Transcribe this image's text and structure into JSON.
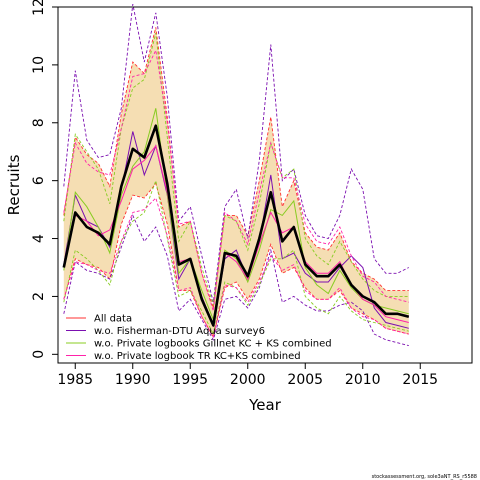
{
  "chart_data": {
    "type": "line",
    "xlabel": "Year",
    "ylabel": "Recruits",
    "xlim": [
      1983.5,
      2019.5
    ],
    "ylim": [
      -0.3,
      12
    ],
    "xticks": [
      1985,
      1990,
      1995,
      2000,
      2005,
      2010,
      2015
    ],
    "yticks": [
      0,
      2,
      4,
      6,
      8,
      10,
      12
    ],
    "tick_labels_x": [
      "1985",
      "1990",
      "1995",
      "2000",
      "2005",
      "2010",
      "2015"
    ],
    "tick_labels_y": [
      "0",
      "2",
      "4",
      "6",
      "8",
      "10",
      "12"
    ],
    "legend_position": "bottom-left",
    "grid": false,
    "x": [
      1984,
      1985,
      1986,
      1987,
      1988,
      1989,
      1990,
      1991,
      1992,
      1993,
      1994,
      1995,
      1996,
      1997,
      1998,
      1999,
      2000,
      2001,
      2002,
      2003,
      2004,
      2005,
      2006,
      2007,
      2008,
      2009,
      2010,
      2011,
      2012,
      2013,
      2014
    ],
    "band": {
      "color": "#f5deb3",
      "upper": [
        4.8,
        7.5,
        6.9,
        6.6,
        5.8,
        8.3,
        10.1,
        9.7,
        11.3,
        8.2,
        4.4,
        4.6,
        2.8,
        1.6,
        4.8,
        4.8,
        4.1,
        6.0,
        8.2,
        5.1,
        6.0,
        4.2,
        3.7,
        3.6,
        4.2,
        3.2,
        2.8,
        2.6,
        2.2,
        2.2,
        2.2
      ],
      "lower": [
        1.9,
        3.3,
        3.1,
        3.0,
        2.6,
        4.5,
        5.5,
        5.4,
        5.9,
        4.5,
        2.2,
        2.2,
        1.3,
        0.6,
        2.3,
        2.5,
        1.9,
        2.6,
        3.8,
        2.8,
        3.0,
        2.3,
        1.9,
        1.9,
        2.2,
        1.6,
        1.4,
        1.2,
        0.9,
        0.8,
        0.7
      ]
    },
    "series": [
      {
        "name": "All data",
        "color": "#ff3030",
        "values": [
          3.0,
          4.9,
          4.4,
          4.2,
          3.8,
          5.8,
          7.1,
          6.8,
          7.9,
          5.9,
          3.1,
          3.3,
          1.9,
          1.0,
          3.5,
          3.4,
          2.7,
          4.0,
          5.6,
          3.9,
          4.4,
          3.1,
          2.7,
          2.7,
          3.1,
          2.4,
          2.0,
          1.8,
          1.4,
          1.4,
          1.3
        ],
        "lower": [
          1.9,
          3.3,
          3.1,
          3.0,
          2.6,
          4.5,
          5.5,
          5.4,
          5.9,
          4.5,
          2.2,
          2.2,
          1.3,
          0.6,
          2.3,
          2.5,
          1.9,
          2.6,
          3.8,
          2.8,
          3.0,
          2.3,
          1.9,
          1.9,
          2.2,
          1.6,
          1.4,
          1.2,
          0.9,
          0.8,
          0.7
        ],
        "upper": [
          4.8,
          7.5,
          6.9,
          6.6,
          5.8,
          8.3,
          10.1,
          9.7,
          11.3,
          8.2,
          4.4,
          4.6,
          2.8,
          1.6,
          4.8,
          4.8,
          4.1,
          6.0,
          8.2,
          5.1,
          6.0,
          4.2,
          3.7,
          3.6,
          4.2,
          3.2,
          2.8,
          2.6,
          2.2,
          2.2,
          2.2
        ]
      },
      {
        "name": "w.o. Fisherman-DTU Aqua survey6",
        "color": "#7b0fb0",
        "values": [
          3.1,
          5.5,
          4.6,
          4.4,
          3.7,
          5.7,
          7.7,
          6.2,
          7.2,
          5.5,
          2.6,
          3.3,
          2.0,
          1.0,
          3.3,
          3.6,
          2.6,
          3.9,
          6.2,
          3.3,
          3.5,
          2.8,
          2.5,
          2.5,
          3.0,
          3.4,
          3.0,
          1.6,
          1.1,
          1.0,
          0.9
        ],
        "lower": [
          1.4,
          3.2,
          2.9,
          2.8,
          2.6,
          3.7,
          4.8,
          3.9,
          4.4,
          3.4,
          1.5,
          1.9,
          1.2,
          0.5,
          1.9,
          2.0,
          1.6,
          2.3,
          3.6,
          1.8,
          2.0,
          1.7,
          1.5,
          1.5,
          1.7,
          1.8,
          1.5,
          0.7,
          0.5,
          0.4,
          0.3
        ],
        "upper": [
          5.8,
          9.8,
          7.4,
          6.8,
          6.9,
          8.5,
          12.1,
          10.1,
          11.8,
          8.9,
          4.6,
          5.1,
          3.4,
          1.8,
          5.1,
          5.7,
          4.0,
          6.7,
          10.7,
          6.0,
          6.4,
          4.8,
          4.1,
          4.0,
          4.8,
          6.4,
          5.7,
          3.3,
          2.8,
          2.8,
          3.0
        ]
      },
      {
        "name": "w.o. Private logbooks Gillnet KC + KS combined",
        "color": "#88cc22",
        "values": [
          2.9,
          5.6,
          5.1,
          4.4,
          3.5,
          5.5,
          6.5,
          7.0,
          8.5,
          5.5,
          2.8,
          3.3,
          2.2,
          1.2,
          3.6,
          3.3,
          2.5,
          3.6,
          5.0,
          4.8,
          5.3,
          3.0,
          2.4,
          2.1,
          2.9,
          2.3,
          1.9,
          1.7,
          1.6,
          1.5,
          1.4
        ],
        "lower": [
          1.8,
          3.6,
          3.3,
          2.9,
          2.4,
          3.9,
          4.6,
          4.9,
          6.0,
          4.0,
          2.0,
          2.2,
          1.5,
          0.7,
          2.5,
          2.3,
          1.7,
          2.4,
          3.3,
          3.3,
          3.6,
          2.0,
          1.6,
          1.4,
          2.0,
          1.5,
          1.2,
          1.1,
          1.0,
          0.9,
          0.8
        ],
        "upper": [
          4.6,
          7.6,
          7.0,
          6.4,
          5.2,
          7.8,
          9.2,
          9.5,
          11.1,
          7.5,
          3.9,
          4.6,
          3.0,
          1.7,
          4.8,
          4.6,
          3.6,
          5.2,
          7.3,
          6.1,
          6.4,
          4.0,
          3.4,
          3.1,
          3.9,
          3.2,
          2.6,
          2.2,
          2.0,
          2.0,
          2.0
        ]
      },
      {
        "name": "w.o. Private logbook TR KC+KS combined",
        "color": "#ff22aa",
        "values": [
          3.0,
          4.8,
          4.6,
          4.1,
          4.3,
          5.3,
          6.4,
          6.7,
          7.2,
          5.6,
          3.2,
          3.3,
          1.9,
          1.0,
          3.5,
          3.2,
          2.6,
          3.8,
          4.9,
          4.2,
          4.4,
          3.2,
          2.8,
          2.8,
          3.2,
          2.4,
          1.9,
          1.7,
          1.3,
          1.2,
          1.1
        ],
        "lower": [
          1.9,
          3.2,
          3.1,
          2.9,
          2.8,
          3.9,
          4.9,
          5.0,
          5.4,
          4.1,
          2.2,
          2.3,
          1.3,
          0.6,
          2.4,
          2.3,
          1.8,
          2.5,
          3.4,
          2.9,
          3.1,
          2.2,
          1.9,
          1.9,
          2.3,
          1.6,
          1.3,
          1.2,
          0.9,
          0.8,
          0.7
        ],
        "upper": [
          4.9,
          7.3,
          6.6,
          6.3,
          6.2,
          7.8,
          9.6,
          9.7,
          10.5,
          8.0,
          4.5,
          4.6,
          2.8,
          1.5,
          4.9,
          4.6,
          3.8,
          5.6,
          7.3,
          6.1,
          6.1,
          4.5,
          3.9,
          3.8,
          4.4,
          3.4,
          2.7,
          2.5,
          2.0,
          1.9,
          1.8
        ]
      }
    ],
    "main_line": {
      "color": "#000000",
      "values_from_series": 0
    }
  },
  "footer": "stockassessment.org, sole3aNT_RS_r5588"
}
